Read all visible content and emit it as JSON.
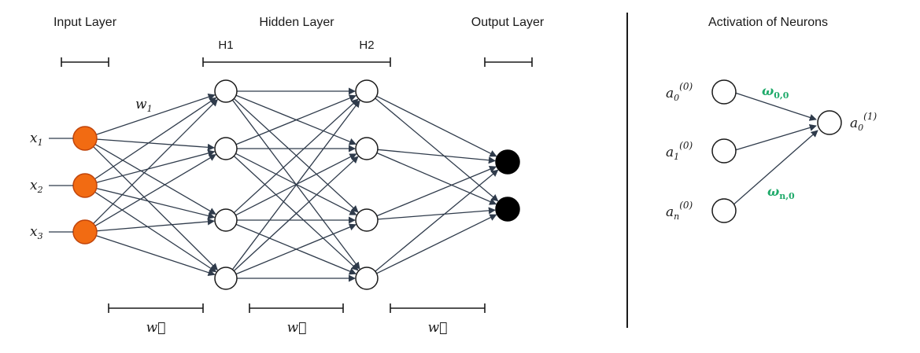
{
  "network": {
    "headers": {
      "input": "Input Layer",
      "hidden": "Hidden Layer",
      "output": "Output Layer"
    },
    "hidden_sublabels": [
      "H1",
      "H2"
    ],
    "weight_label": {
      "base": "w",
      "sub": "1"
    },
    "inputs": [
      {
        "base": "x",
        "sub": "1"
      },
      {
        "base": "x",
        "sub": "2"
      },
      {
        "base": "x",
        "sub": "3"
      }
    ],
    "w_vector_label": "w⃗",
    "colors": {
      "input_node": "#f26b12",
      "output_node": "#000000",
      "edge": "#2f3b4b"
    }
  },
  "activation": {
    "title": "Activation of Neurons",
    "left_nodes": [
      {
        "base": "a",
        "sub": "0",
        "sup": "(0)"
      },
      {
        "base": "a",
        "sub": "1",
        "sup": "(0)"
      },
      {
        "base": "a",
        "sub": "n",
        "sup": "(0)"
      }
    ],
    "right_node": {
      "base": "a",
      "sub": "0",
      "sup": "(1)"
    },
    "weights": [
      {
        "base": "ω",
        "sub": "0,0"
      },
      {
        "base": "ω",
        "sub": "n,0"
      }
    ]
  }
}
